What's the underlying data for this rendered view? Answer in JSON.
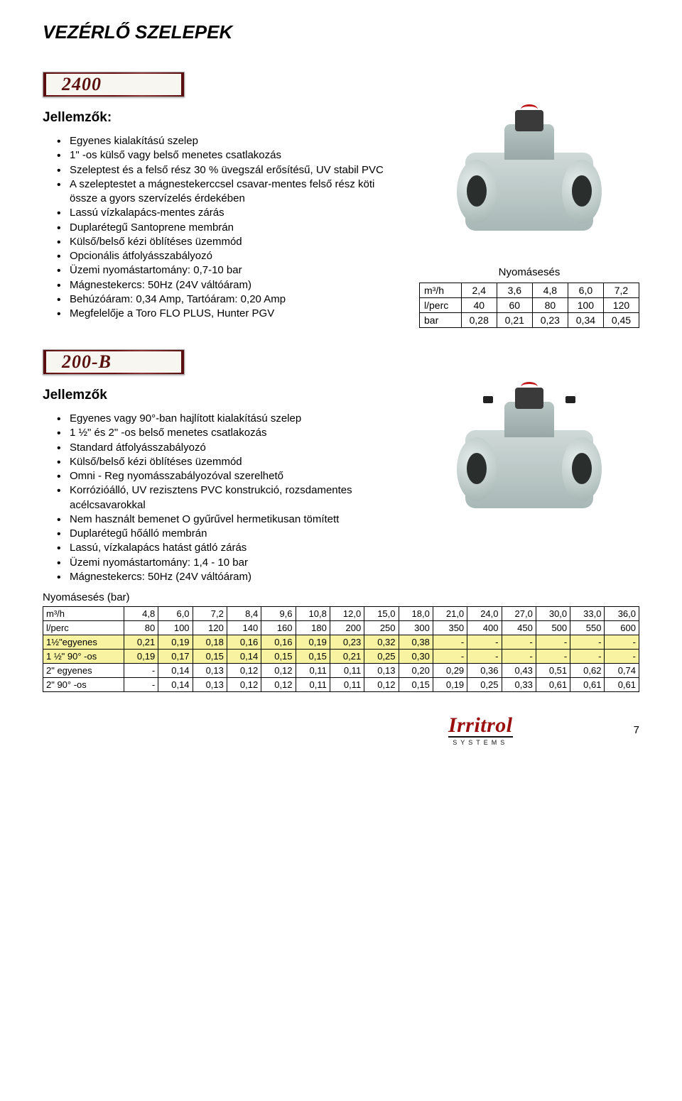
{
  "page_title": "VEZÉRLŐ SZELEPEK",
  "badge1": "2400",
  "badge2": "200-B",
  "section1": {
    "features_heading": "Jellemzők:",
    "bullets": [
      "Egyenes kialakítású szelep",
      "1\" -os külső vagy belső menetes csatlakozás",
      "Szeleptest és a felső rész 30 % üvegszál erősítésű, UV stabil PVC",
      "A szeleptestet a mágnestekerccsel csavar-mentes felső rész köti össze a gyors szervízelés érdekében",
      "Lassú vízkalapács-mentes zárás",
      "Duplarétegű Santoprene membrán",
      "Külső/belső kézi öblítéses üzemmód",
      "Opcionális átfolyásszabályozó",
      "Üzemi nyomástartomány: 0,7-10 bar",
      "Mágnestekercs: 50Hz (24V váltóáram)",
      "Behúzóáram: 0,34 Amp, Tartóáram: 0,20 Amp",
      "Megfelelője a Toro FLO PLUS, Hunter PGV"
    ],
    "press_table": {
      "title": "Nyomásesés",
      "rows": [
        [
          "m³/h",
          "2,4",
          "3,6",
          "4,8",
          "6,0",
          "7,2"
        ],
        [
          "l/perc",
          "40",
          "60",
          "80",
          "100",
          "120"
        ],
        [
          "bar",
          "0,28",
          "0,21",
          "0,23",
          "0,34",
          "0,45"
        ]
      ]
    }
  },
  "section2": {
    "features_heading": "Jellemzők",
    "bullets": [
      "Egyenes vagy 90°-ban hajlított kialakítású szelep",
      "1 ½\" és 2\" -os belső menetes csatlakozás",
      "Standard átfolyásszabályozó",
      "Külső/belső kézi öblítéses üzemmód",
      "Omni - Reg nyomásszabályozóval szerelhető",
      "Korrózióálló, UV rezisztens PVC konstrukció, rozsdamentes acélcsavarokkal",
      "Nem használt bemenet O gyűrűvel hermetikusan tömített",
      "Duplarétegű hőálló membrán",
      "Lassú, vízkalapács hatást gátló zárás",
      "Üzemi nyomástartomány: 1,4 - 10 bar",
      "Mágnestekercs: 50Hz (24V váltóáram)"
    ],
    "press_table": {
      "title": "Nyomásesés (bar)",
      "rows": [
        [
          "m³/h",
          "4,8",
          "6,0",
          "7,2",
          "8,4",
          "9,6",
          "10,8",
          "12,0",
          "15,0",
          "18,0",
          "21,0",
          "24,0",
          "27,0",
          "30,0",
          "33,0",
          "36,0"
        ],
        [
          "l/perc",
          "80",
          "100",
          "120",
          "140",
          "160",
          "180",
          "200",
          "250",
          "300",
          "350",
          "400",
          "450",
          "500",
          "550",
          "600"
        ],
        [
          "1½\"egyenes",
          "0,21",
          "0,19",
          "0,18",
          "0,16",
          "0,16",
          "0,19",
          "0,23",
          "0,32",
          "0,38",
          "-",
          "-",
          "-",
          "-",
          "-",
          "-"
        ],
        [
          "1 ½\" 90° -os",
          "0,19",
          "0,17",
          "0,15",
          "0,14",
          "0,15",
          "0,15",
          "0,21",
          "0,25",
          "0,30",
          "-",
          "-",
          "-",
          "-",
          "-",
          "-"
        ],
        [
          "2\" egyenes",
          "-",
          "0,14",
          "0,13",
          "0,12",
          "0,12",
          "0,11",
          "0,11",
          "0,13",
          "0,20",
          "0,29",
          "0,36",
          "0,43",
          "0,51",
          "0,62",
          "0,74"
        ],
        [
          "2\" 90° -os",
          "-",
          "0,14",
          "0,13",
          "0,12",
          "0,12",
          "0,11",
          "0,11",
          "0,12",
          "0,15",
          "0,19",
          "0,25",
          "0,33",
          "0,61",
          "0,61",
          "0,61"
        ]
      ],
      "highlight_rows": [
        2,
        3
      ]
    }
  },
  "logo": {
    "main": "Irritrol",
    "sub": "SYSTEMS"
  },
  "page_number": "7",
  "colors": {
    "brand_red": "#9a0e0e",
    "badge_bg": "#5a0e0e",
    "highlight": "#f7f3a0"
  }
}
